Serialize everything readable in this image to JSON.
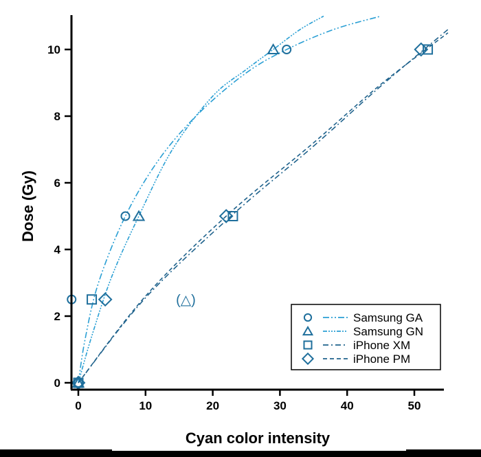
{
  "chart_data": {
    "type": "scatter",
    "title": "",
    "xlabel": "Cyan color intensity",
    "ylabel": "Dose (Gy)",
    "xlim": [
      -1,
      55
    ],
    "ylim": [
      -0.2,
      11
    ],
    "xticks": [
      0,
      10,
      20,
      30,
      40,
      50
    ],
    "yticks": [
      0,
      2,
      4,
      6,
      8,
      10
    ],
    "grid": false,
    "legend_position": "bottom-right",
    "colors": {
      "marker": "#1f6f9c",
      "line_samsung": "#2a9fd4",
      "line_iphone": "#1f628c"
    },
    "series": [
      {
        "name": "Samsung GA",
        "marker": "circle",
        "dash": "dash-dot-dot",
        "points": [
          [
            0,
            0
          ],
          [
            -1,
            2.5
          ],
          [
            7,
            5
          ],
          [
            31,
            10
          ]
        ],
        "fit": [
          [
            0,
            0
          ],
          [
            1,
            1.3
          ],
          [
            3,
            3.0
          ],
          [
            7,
            5
          ],
          [
            12,
            6.7
          ],
          [
            18,
            8.1
          ],
          [
            25,
            9.3
          ],
          [
            31,
            10
          ],
          [
            38,
            10.6
          ],
          [
            45,
            11
          ]
        ]
      },
      {
        "name": "Samsung GN",
        "marker": "triangle",
        "dash": "dash-dot-dot-dot",
        "points": [
          [
            0,
            0
          ],
          [
            9,
            5
          ],
          [
            29,
            10
          ]
        ],
        "outliers": [
          [
            16,
            2.5
          ]
        ],
        "outlier_label": "(△)",
        "fit": [
          [
            0,
            0
          ],
          [
            2,
            1.4
          ],
          [
            5,
            3.2
          ],
          [
            9,
            5
          ],
          [
            14,
            7.0
          ],
          [
            20,
            8.6
          ],
          [
            25,
            9.4
          ],
          [
            29,
            10
          ],
          [
            33,
            10.6
          ],
          [
            36.5,
            11
          ]
        ]
      },
      {
        "name": "iPhone XM",
        "marker": "square",
        "dash": "dash-dot",
        "points": [
          [
            0,
            0
          ],
          [
            2,
            2.5
          ],
          [
            23,
            5
          ],
          [
            52,
            10
          ]
        ],
        "fit": [
          [
            0,
            0
          ],
          [
            10,
            2.55
          ],
          [
            23,
            5.05
          ],
          [
            35,
            7.1
          ],
          [
            45,
            8.9
          ],
          [
            55,
            10.6
          ]
        ]
      },
      {
        "name": "iPhone PM",
        "marker": "diamond",
        "dash": "dash",
        "points": [
          [
            0,
            0
          ],
          [
            4,
            2.5
          ],
          [
            22,
            5
          ],
          [
            51,
            10
          ]
        ],
        "fit": [
          [
            0,
            0
          ],
          [
            10,
            2.6
          ],
          [
            22,
            5
          ],
          [
            35,
            7.2
          ],
          [
            45,
            8.95
          ],
          [
            55,
            10.5
          ]
        ]
      }
    ]
  }
}
